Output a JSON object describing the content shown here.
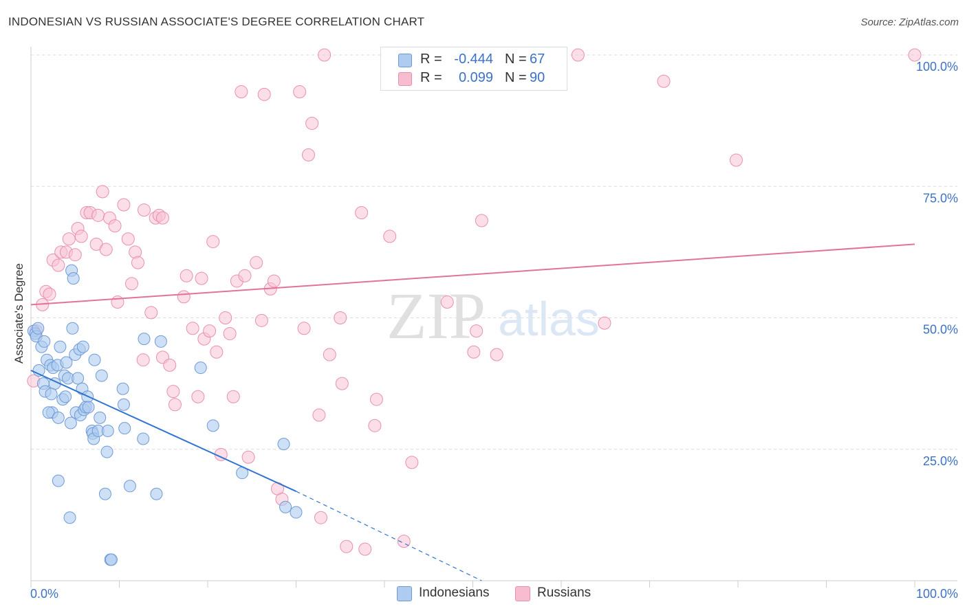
{
  "title": "INDONESIAN VS RUSSIAN ASSOCIATE'S DEGREE CORRELATION CHART",
  "source": "Source: ZipAtlas.com",
  "watermark": {
    "zip": "ZIP",
    "atlas": "atlas"
  },
  "legend": {
    "rows": [
      {
        "r_label": "R =",
        "r_value": "-0.444",
        "n_label": "N =",
        "n_value": "67",
        "color": "#aecbf0"
      },
      {
        "r_label": "R =",
        "r_value": "0.099",
        "n_label": "N =",
        "n_value": "90",
        "color": "#f7bcd0"
      }
    ]
  },
  "bottom_legend": {
    "indonesians": "Indonesians",
    "russians": "Russians"
  },
  "colors": {
    "blue_fill": "#aecbf0",
    "blue_stroke": "#6f9ad6",
    "blue_line": "#2f74d0",
    "pink_fill": "#f7c3d3",
    "pink_stroke": "#e98fae",
    "pink_line": "#e3729a",
    "tick_text": "#3b72c8",
    "grid": "#dddddd"
  },
  "chart_data": {
    "type": "scatter",
    "title": "INDONESIAN VS RUSSIAN ASSOCIATE'S DEGREE CORRELATION CHART",
    "xlabel": "",
    "ylabel": "Associate's Degree",
    "xlim": [
      0,
      100
    ],
    "ylim": [
      0,
      100
    ],
    "x_tick_labels": [
      "0.0%",
      "100.0%"
    ],
    "y_tick_labels": [
      "25.0%",
      "50.0%",
      "75.0%",
      "100.0%"
    ],
    "y_tick_values": [
      25,
      50,
      75,
      100
    ],
    "grid": true,
    "legend_position": "top-center",
    "series": [
      {
        "name": "Indonesians",
        "r": -0.444,
        "n": 67,
        "trend": {
          "x0": 0,
          "y0": 40,
          "x1": 30,
          "y1": 17,
          "dash_to_x": 51,
          "dash_to_y": 0
        },
        "points": [
          [
            0.3,
            47.5
          ],
          [
            0.5,
            47
          ],
          [
            0.6,
            46.5
          ],
          [
            0.8,
            48
          ],
          [
            1.2,
            44.5
          ],
          [
            1.5,
            45.5
          ],
          [
            0.9,
            40
          ],
          [
            1.8,
            42
          ],
          [
            2.2,
            41
          ],
          [
            1.4,
            37.5
          ],
          [
            2.5,
            40.5
          ],
          [
            2.7,
            37.5
          ],
          [
            1.6,
            36
          ],
          [
            2.3,
            35.5
          ],
          [
            2.4,
            32
          ],
          [
            2.0,
            32
          ],
          [
            3.1,
            31
          ],
          [
            3.3,
            44.5
          ],
          [
            3.0,
            41
          ],
          [
            4.0,
            41.5
          ],
          [
            3.8,
            39
          ],
          [
            4.2,
            38.5
          ],
          [
            3.6,
            34.5
          ],
          [
            3.9,
            35
          ],
          [
            4.5,
            30
          ],
          [
            4.7,
            48
          ],
          [
            5.0,
            43
          ],
          [
            5.5,
            44
          ],
          [
            5.9,
            44.5
          ],
          [
            5.3,
            38.5
          ],
          [
            5.8,
            36.5
          ],
          [
            6.4,
            35
          ],
          [
            5.1,
            32
          ],
          [
            5.6,
            31.5
          ],
          [
            6.0,
            32.5
          ],
          [
            6.2,
            33
          ],
          [
            6.5,
            33
          ],
          [
            7.2,
            42
          ],
          [
            8.0,
            39
          ],
          [
            7.8,
            31
          ],
          [
            6.9,
            28.5
          ],
          [
            7.0,
            28
          ],
          [
            7.1,
            27
          ],
          [
            7.6,
            28.5
          ],
          [
            8.7,
            28.5
          ],
          [
            10.4,
            36.5
          ],
          [
            10.5,
            33.5
          ],
          [
            10.6,
            29
          ],
          [
            8.6,
            24.5
          ],
          [
            12.8,
            46
          ],
          [
            14.7,
            45.5
          ],
          [
            12.7,
            27
          ],
          [
            4.6,
            59
          ],
          [
            4.8,
            57.5
          ],
          [
            14.2,
            16.5
          ],
          [
            8.4,
            16.5
          ],
          [
            3.1,
            19
          ],
          [
            4.4,
            12
          ],
          [
            11.2,
            18
          ],
          [
            9.0,
            4
          ],
          [
            9.1,
            4
          ],
          [
            19.2,
            40.5
          ],
          [
            20.6,
            29.5
          ],
          [
            23.9,
            20.5
          ],
          [
            28.6,
            26
          ],
          [
            28.8,
            14
          ],
          [
            30.0,
            13
          ]
        ]
      },
      {
        "name": "Russians",
        "r": 0.099,
        "n": 90,
        "trend": {
          "x0": 0,
          "y0": 52.5,
          "x1": 100,
          "y1": 64
        },
        "points": [
          [
            0.3,
            38
          ],
          [
            0.6,
            47.5
          ],
          [
            1.3,
            52.5
          ],
          [
            1.7,
            55
          ],
          [
            2.1,
            54.5
          ],
          [
            2.5,
            61
          ],
          [
            3.1,
            60
          ],
          [
            3.4,
            62.5
          ],
          [
            4.0,
            62.5
          ],
          [
            4.3,
            65
          ],
          [
            5.0,
            62
          ],
          [
            5.3,
            67
          ],
          [
            5.7,
            65.5
          ],
          [
            6.3,
            70
          ],
          [
            6.7,
            70
          ],
          [
            7.4,
            64
          ],
          [
            7.6,
            69.5
          ],
          [
            8.1,
            74
          ],
          [
            8.5,
            63
          ],
          [
            8.9,
            69
          ],
          [
            9.5,
            67.5
          ],
          [
            9.8,
            53
          ],
          [
            10.5,
            71.5
          ],
          [
            11.0,
            65
          ],
          [
            11.4,
            56.5
          ],
          [
            11.8,
            62.5
          ],
          [
            12.1,
            60.5
          ],
          [
            12.8,
            70.5
          ],
          [
            13.6,
            51
          ],
          [
            14.1,
            69
          ],
          [
            14.5,
            69.5
          ],
          [
            14.9,
            69
          ],
          [
            12.7,
            42
          ],
          [
            14.9,
            42.5
          ],
          [
            15.7,
            41
          ],
          [
            16.1,
            36
          ],
          [
            16.3,
            33.5
          ],
          [
            17.3,
            54
          ],
          [
            17.6,
            58
          ],
          [
            18.3,
            48
          ],
          [
            18.9,
            35
          ],
          [
            19.3,
            57.5
          ],
          [
            19.6,
            46
          ],
          [
            20.2,
            47.5
          ],
          [
            20.6,
            64.5
          ],
          [
            21.0,
            43.5
          ],
          [
            21.5,
            24
          ],
          [
            22.0,
            50
          ],
          [
            22.5,
            47
          ],
          [
            22.9,
            35
          ],
          [
            23.3,
            57
          ],
          [
            24.2,
            58
          ],
          [
            23.8,
            93
          ],
          [
            24.6,
            23.5
          ],
          [
            25.5,
            60.5
          ],
          [
            26.1,
            49.5
          ],
          [
            26.4,
            92.5
          ],
          [
            27.1,
            55.5
          ],
          [
            27.5,
            57
          ],
          [
            27.9,
            17.5
          ],
          [
            28.4,
            15.5
          ],
          [
            30.4,
            93
          ],
          [
            30.9,
            48
          ],
          [
            31.4,
            81
          ],
          [
            31.8,
            87
          ],
          [
            32.6,
            31.5
          ],
          [
            32.8,
            12
          ],
          [
            33.2,
            100
          ],
          [
            33.8,
            43
          ],
          [
            35.0,
            50
          ],
          [
            35.2,
            37.5
          ],
          [
            35.7,
            6.5
          ],
          [
            37.4,
            70
          ],
          [
            37.8,
            6
          ],
          [
            38.9,
            29.5
          ],
          [
            39.1,
            34.5
          ],
          [
            40.6,
            65.5
          ],
          [
            43.1,
            22.5
          ],
          [
            47.1,
            53
          ],
          [
            50.1,
            43.5
          ],
          [
            50.4,
            47.5
          ],
          [
            51.0,
            68.5
          ],
          [
            52.7,
            43
          ],
          [
            59.3,
            100
          ],
          [
            61.9,
            100
          ],
          [
            64.9,
            49
          ],
          [
            71.6,
            95
          ],
          [
            79.8,
            80
          ],
          [
            100.0,
            100
          ],
          [
            42.2,
            7.5
          ]
        ]
      }
    ]
  }
}
